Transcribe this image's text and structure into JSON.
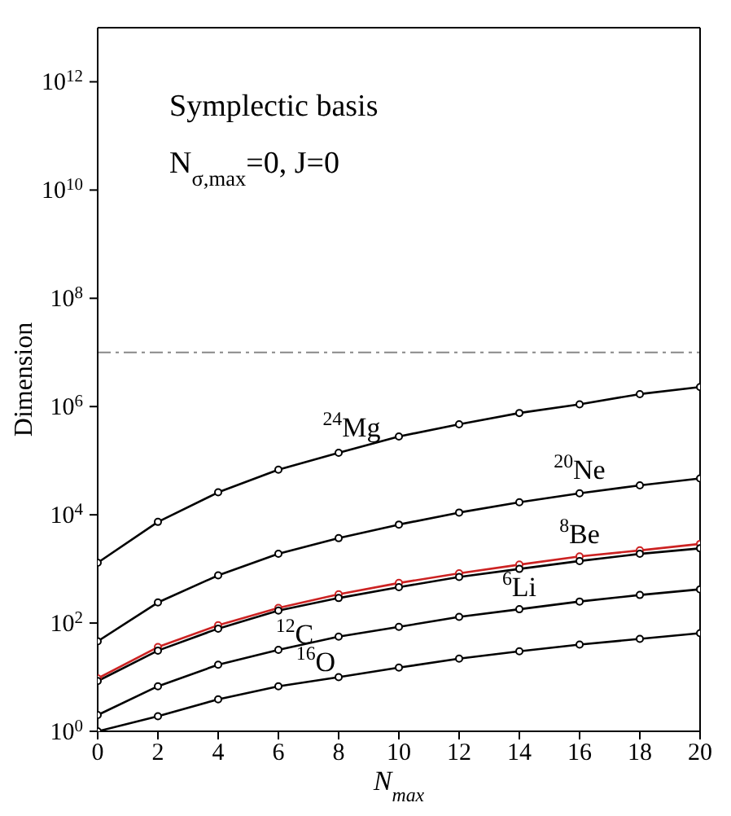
{
  "chart_data": {
    "type": "line",
    "xlabel": "N$_{max}$",
    "ylabel": "Dimension",
    "annotations": [
      "Symplectic basis",
      "N$_{σ,max}$=0, J=0"
    ],
    "x": [
      0,
      2,
      4,
      6,
      8,
      10,
      12,
      14,
      16,
      18,
      20
    ],
    "series": [
      {
        "name": "$^{24}$Mg",
        "color": "#000000",
        "values": [
          1300,
          7400,
          26000,
          68000,
          140000,
          280000,
          470000,
          760000,
          1100000,
          1700000,
          2300000
        ]
      },
      {
        "name": "$^{20}$Ne",
        "color": "#000000",
        "values": [
          46,
          240,
          760,
          1900,
          3700,
          6600,
          11000,
          17000,
          25000,
          35000,
          47000
        ]
      },
      {
        "name": "$^{8}$Be",
        "color": "#cc2222",
        "values": [
          9.5,
          36,
          91,
          190,
          340,
          550,
          830,
          1200,
          1700,
          2200,
          2900
        ]
      },
      {
        "name": "$^{12}$C",
        "color": "#000000",
        "values": [
          8.5,
          31,
          79,
          170,
          290,
          460,
          710,
          1000,
          1400,
          1900,
          2400
        ]
      },
      {
        "name": "$^{6}$Li",
        "color": "#000000",
        "values": [
          2,
          6.8,
          17,
          32,
          56,
          85,
          130,
          180,
          250,
          330,
          420
        ]
      },
      {
        "name": "$^{16}$O",
        "color": "#000000",
        "values": [
          1,
          1.9,
          3.9,
          6.8,
          10,
          15,
          22,
          30,
          40,
          51,
          65
        ]
      }
    ],
    "xlim": [
      0,
      20
    ],
    "xticks": [
      0,
      2,
      4,
      6,
      8,
      10,
      12,
      14,
      16,
      18,
      20
    ],
    "ylim": [
      1,
      10000000000000
    ],
    "yticks": [
      {
        "value": 1,
        "label": "10$^{0}$"
      },
      {
        "value": 100,
        "label": "10$^{2}$"
      },
      {
        "value": 10000,
        "label": "10$^{4}$"
      },
      {
        "value": 1000000,
        "label": "10$^{6}$"
      },
      {
        "value": 100000000,
        "label": "10$^{8}$"
      },
      {
        "value": 10000000000,
        "label": "10$^{10}$"
      },
      {
        "value": 1000000000000,
        "label": "10$^{12}$"
      }
    ],
    "log": true,
    "marker": "circle",
    "ref_lines": [
      {
        "axis": "y",
        "value": 10000000,
        "color": "#888888",
        "line_style": "dashdot"
      }
    ]
  }
}
